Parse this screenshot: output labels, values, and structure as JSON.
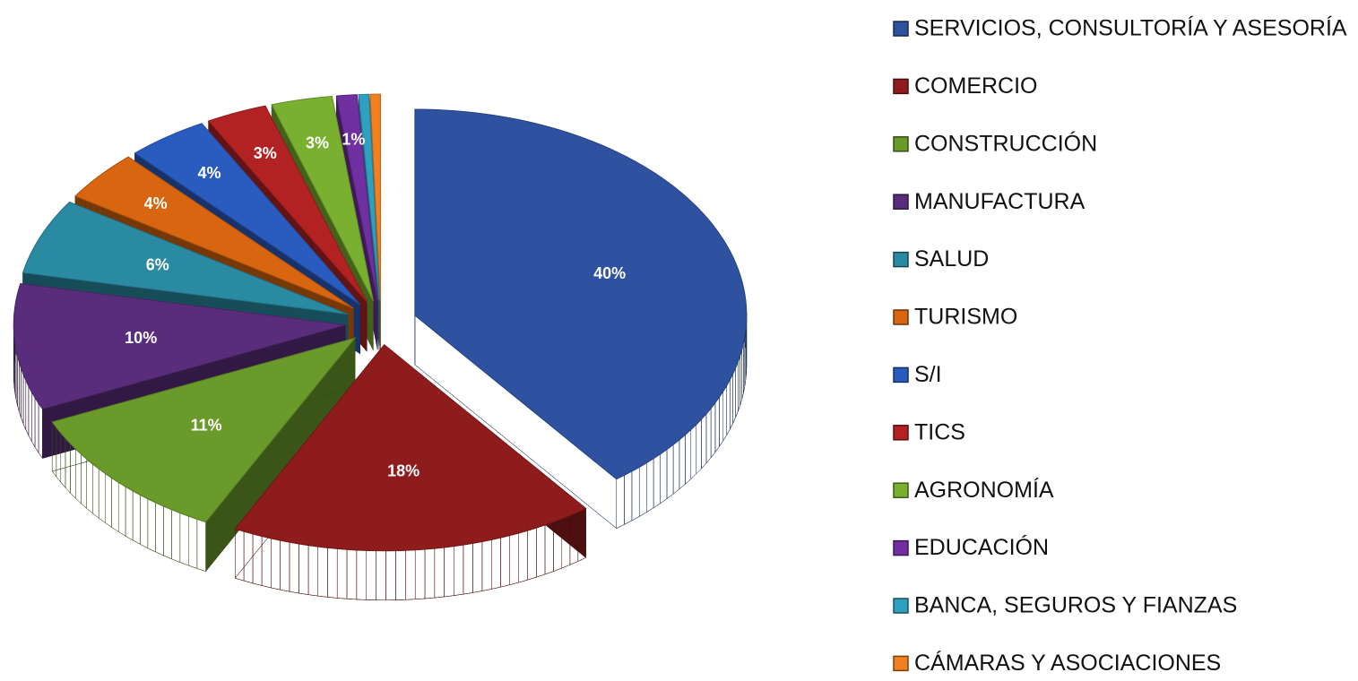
{
  "chart_data": {
    "type": "pie",
    "categories": [
      "SERVICIOS, CONSULTORÍA Y ASESORÍA",
      "COMERCIO",
      "CONSTRUCCIÓN",
      "MANUFACTURA",
      "SALUD",
      "TURISMO",
      "S/I",
      "TICS",
      "AGRONOMÍA",
      "EDUCACIÓN",
      "BANCA, SEGUROS Y FIANZAS",
      "CÁMARAS Y ASOCIACIONES"
    ],
    "values": [
      40,
      18,
      11,
      10,
      6,
      4,
      4,
      3,
      3,
      1,
      0.5,
      0.5
    ],
    "value_labels": [
      "40%",
      "18%",
      "11%",
      "10%",
      "6%",
      "4%",
      "4%",
      "3%",
      "3%",
      "1%",
      null,
      null
    ],
    "colors": [
      "#2f52a0",
      "#8e1c1c",
      "#6a9a2a",
      "#5a2d7c",
      "#2a8aa2",
      "#d8650f",
      "#2a5cc0",
      "#b22222",
      "#7ab030",
      "#7030a0",
      "#30a0c0",
      "#f08020"
    ],
    "legend": "right"
  }
}
